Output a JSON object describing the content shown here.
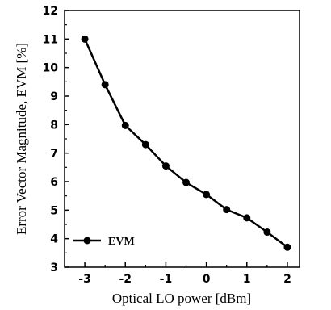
{
  "chart_data": {
    "type": "line",
    "xlabel": "Optical LO power [dBm]",
    "ylabel": "Error Vector Magnitude, EVM [%]",
    "xlim": [
      -3.5,
      2.3
    ],
    "ylim": [
      3,
      12
    ],
    "x_ticks": [
      -3,
      -2,
      -1,
      0,
      1,
      2
    ],
    "y_ticks": [
      3,
      4,
      5,
      6,
      7,
      8,
      9,
      10,
      11,
      12
    ],
    "legend_position": "bottom-left",
    "grid": false,
    "series": [
      {
        "name": "EVM",
        "color": "#000000",
        "marker": "circle",
        "x": [
          -3,
          -2.5,
          -2,
          -1.5,
          -1,
          -0.5,
          0,
          0.5,
          1,
          1.5,
          2
        ],
        "y": [
          11.0,
          9.4,
          7.97,
          7.3,
          6.55,
          5.97,
          5.55,
          5.02,
          4.73,
          4.23,
          3.7
        ]
      }
    ]
  }
}
